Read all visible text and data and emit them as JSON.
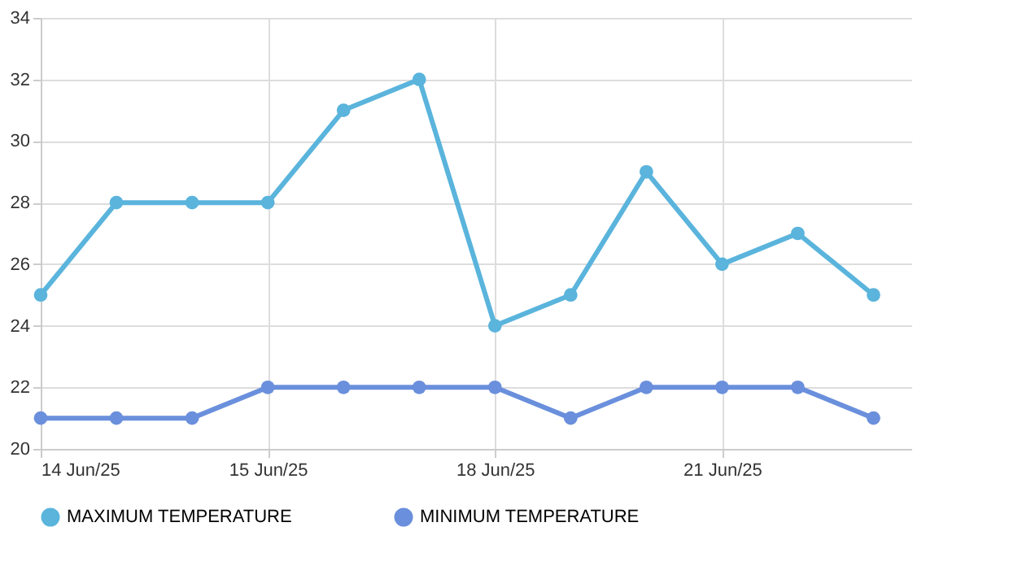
{
  "chart_data": {
    "type": "line",
    "categories": [
      "14 Jun/25",
      null,
      null,
      "15 Jun/25",
      null,
      null,
      "18 Jun/25",
      null,
      null,
      "21 Jun/25",
      null,
      null
    ],
    "series": [
      {
        "name": "MAXIMUM TEMPERATURE",
        "color": "#5ab4dc",
        "values": [
          25,
          28,
          28,
          28,
          31,
          32,
          24,
          25,
          29,
          26,
          27,
          25
        ]
      },
      {
        "name": "MINIMUM TEMPERATURE",
        "color": "#6a8fdc",
        "values": [
          21,
          21,
          21,
          22,
          22,
          22,
          22,
          21,
          22,
          22,
          22,
          21
        ]
      }
    ],
    "ylim": [
      20,
      34
    ],
    "yticks": [
      20,
      22,
      24,
      26,
      28,
      30,
      32,
      34
    ],
    "grid": true,
    "legend": "bottom",
    "marker": "circle",
    "line_style": "solid"
  }
}
